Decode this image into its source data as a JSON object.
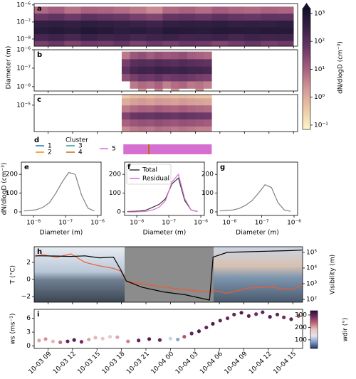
{
  "colorbar": {
    "label": "dN/dlogD (cm⁻³)",
    "zlim": [
      0.07,
      1500
    ],
    "scale": "log",
    "extend": "max",
    "colormap": [
      "#fdf5c9",
      "#ecc9a6",
      "#d39a97",
      "#a8607f",
      "#6c3868",
      "#3a2248",
      "#14122a"
    ],
    "ticks": [
      {
        "value": 1000,
        "label": "10³"
      },
      {
        "value": 100,
        "label": "10²"
      },
      {
        "value": 10,
        "label": "10¹"
      },
      {
        "value": 1,
        "label": "10⁰"
      },
      {
        "value": 0.1,
        "label": "10⁻¹"
      }
    ]
  },
  "chart_data": [
    {
      "type": "heatmap",
      "panel_label": "a",
      "xlim": [
        -1.7,
        30.5
      ],
      "ylim": [
        3.8e-09,
        1.2e-06
      ],
      "yscale": "log",
      "yticks": [
        {
          "value": 1e-06,
          "label": "10⁻⁶"
        },
        {
          "value": 1e-07,
          "label": "10⁻⁷"
        },
        {
          "value": 1e-08,
          "label": "10⁻⁸"
        }
      ],
      "x": [
        -1,
        1,
        3,
        5,
        7,
        9,
        11,
        13,
        15,
        17,
        19,
        21,
        23,
        25,
        27,
        29
      ],
      "y": [
        5e-09,
        1.26e-08,
        3.16e-08,
        7.9e-08,
        2e-07,
        5e-07
      ],
      "z": [
        [
          40,
          60,
          30,
          50,
          45,
          70,
          35,
          55,
          40,
          60,
          50,
          30,
          45,
          65,
          40,
          50
        ],
        [
          200,
          250,
          180,
          300,
          220,
          260,
          190,
          240,
          280,
          210,
          230,
          260,
          200,
          250,
          220,
          240
        ],
        [
          600,
          700,
          550,
          800,
          650,
          500,
          600,
          450,
          700,
          650,
          600,
          750,
          680,
          620,
          700,
          640
        ],
        [
          400,
          450,
          380,
          500,
          420,
          350,
          300,
          250,
          400,
          450,
          420,
          480,
          400,
          430,
          390,
          460
        ],
        [
          60,
          80,
          50,
          90,
          70,
          60,
          40,
          30,
          70,
          80,
          60,
          90,
          70,
          60,
          80,
          75
        ],
        [
          8,
          12,
          6,
          10,
          9,
          7,
          5,
          3,
          8,
          10,
          7,
          12,
          9,
          8,
          10,
          9
        ]
      ]
    },
    {
      "type": "heatmap",
      "panel_label": "b",
      "ylabel": "Diameter (m)",
      "xlim": [
        -1.7,
        30.5
      ],
      "ylim": [
        5.8e-09,
        1e-06
      ],
      "yscale": "log",
      "yticks": [
        {
          "value": 1e-06,
          "label": "10⁻⁶"
        },
        {
          "value": 1e-07,
          "label": "10⁻⁷"
        },
        {
          "value": 1e-08,
          "label": "10⁻⁸"
        }
      ],
      "x": [
        9.5,
        10.5,
        11.5,
        12.5,
        13.5,
        14.5,
        15.5,
        16.5,
        17.5,
        18.5,
        19.5
      ],
      "y": [
        5e-09,
        1.26e-08,
        3.16e-08,
        7.9e-08,
        2e-07,
        5e-07
      ],
      "z": [
        [
          null,
          null,
          2,
          null,
          3,
          null,
          2,
          null,
          null,
          3,
          null
        ],
        [
          null,
          5,
          8,
          6,
          10,
          4,
          7,
          9,
          5,
          6,
          4
        ],
        [
          20,
          40,
          60,
          50,
          70,
          45,
          55,
          65,
          50,
          40,
          35
        ],
        [
          80,
          200,
          250,
          220,
          300,
          260,
          240,
          280,
          230,
          210,
          180
        ],
        [
          40,
          100,
          120,
          110,
          140,
          120,
          100,
          130,
          110,
          90,
          80
        ],
        [
          5,
          15,
          20,
          12,
          18,
          14,
          16,
          20,
          12,
          10,
          8
        ]
      ]
    },
    {
      "type": "heatmap",
      "panel_label": "c",
      "xlim": [
        -1.7,
        30.5
      ],
      "ylim": [
        1.78e-06,
        2e-05
      ],
      "yscale": "log",
      "yticks": [
        {
          "value": 1e-05,
          "label": "10⁻⁵"
        }
      ],
      "x": [
        9.5,
        10.5,
        11.5,
        12.5,
        13.5,
        14.5,
        15.5,
        16.5,
        17.5,
        18.5,
        19.5
      ],
      "y": [
        2e-06,
        3.16e-06,
        5e-06,
        7.9e-06,
        1.26e-05,
        2e-05
      ],
      "z": [
        [
          3,
          5,
          6,
          5,
          7,
          6,
          5,
          6,
          5,
          4,
          4
        ],
        [
          10,
          15,
          18,
          16,
          20,
          17,
          15,
          18,
          16,
          14,
          12
        ],
        [
          30,
          60,
          70,
          65,
          80,
          70,
          60,
          75,
          65,
          55,
          50
        ],
        [
          5,
          8,
          10,
          9,
          12,
          10,
          9,
          11,
          9,
          8,
          7
        ],
        [
          1,
          1.5,
          2,
          1.5,
          2,
          1.8,
          1.5,
          2,
          1.6,
          1.4,
          1.2
        ],
        [
          0.3,
          0.5,
          0.6,
          0.5,
          0.7,
          0.6,
          0.5,
          0.6,
          0.5,
          0.4,
          0.4
        ]
      ]
    },
    {
      "type": "timeline",
      "panel_label": "d",
      "legend_title": "Cluster",
      "xlim": [
        -1.7,
        30.5
      ],
      "series": [
        {
          "name": "1",
          "color": "#1f77b4"
        },
        {
          "name": "2",
          "color": "#ff7f0e"
        },
        {
          "name": "3",
          "color": "#2a9d8f"
        },
        {
          "name": "4",
          "color": "#c8651b"
        },
        {
          "name": "5",
          "color": "#d56fd0"
        }
      ],
      "segments": [
        {
          "start": 9.2,
          "end": 12.2,
          "cluster": 5
        },
        {
          "start": 12.2,
          "end": 12.4,
          "cluster": 4
        },
        {
          "start": 12.4,
          "end": 20,
          "cluster": 5
        }
      ]
    },
    {
      "type": "line",
      "panel_label": "e",
      "ylabel": "dN/dlogD (cm⁻³)",
      "xlabel": "Diameter (m)",
      "xscale": "log",
      "xlim": [
        4.17e-09,
        1.29e-06
      ],
      "ylim": [
        -19,
        265
      ],
      "xticks": [
        {
          "value": 1e-08,
          "label": "10⁻⁸"
        },
        {
          "value": 1e-07,
          "label": "10⁻⁷"
        },
        {
          "value": 1e-06,
          "label": "10⁻⁶"
        }
      ],
      "yticks": [
        0,
        100,
        200
      ],
      "x": [
        5e-09,
        7.9e-09,
        1.26e-08,
        2e-08,
        3.16e-08,
        5e-08,
        7.9e-08,
        1.26e-07,
        2e-07,
        3.16e-07,
        5e-07,
        7.9e-07
      ],
      "series": [
        {
          "color": "#808080",
          "values": [
            5,
            8,
            12,
            25,
            50,
            100,
            160,
            210,
            200,
            90,
            20,
            5
          ]
        }
      ]
    },
    {
      "type": "line",
      "panel_label": "f",
      "xlabel": "Diameter (m)",
      "xscale": "log",
      "legend": "upper left",
      "xlim": [
        4.17e-09,
        1.29e-06
      ],
      "ylim": [
        -19,
        265
      ],
      "xticks": [
        {
          "value": 1e-08,
          "label": "10⁻⁸"
        },
        {
          "value": 1e-07,
          "label": "10⁻⁷"
        },
        {
          "value": 1e-06,
          "label": "10⁻⁶"
        }
      ],
      "yticks": [
        0,
        100,
        200
      ],
      "x": [
        5e-09,
        7.9e-09,
        1.26e-08,
        2e-08,
        3.16e-08,
        5e-08,
        7.9e-08,
        1.26e-07,
        2e-07,
        3.16e-07,
        5e-07,
        7.9e-07
      ],
      "series": [
        {
          "name": "Total",
          "color": "#333333",
          "values": [
            2,
            3,
            5,
            10,
            25,
            40,
            70,
            150,
            180,
            60,
            10,
            2
          ]
        },
        {
          "name": "Residual",
          "color": "#d56fd0",
          "values": [
            0,
            0,
            1,
            3,
            10,
            25,
            60,
            160,
            200,
            70,
            10,
            2
          ]
        }
      ]
    },
    {
      "type": "line",
      "panel_label": "g",
      "xlabel": "Diameter (m)",
      "xscale": "log",
      "xlim": [
        4.17e-09,
        1.29e-06
      ],
      "ylim": [
        -19,
        265
      ],
      "xticks": [
        {
          "value": 1e-08,
          "label": "10⁻⁸"
        },
        {
          "value": 1e-07,
          "label": "10⁻⁷"
        },
        {
          "value": 1e-06,
          "label": "10⁻⁶"
        }
      ],
      "yticks": [
        0,
        100,
        200
      ],
      "x": [
        5e-09,
        7.9e-09,
        1.26e-08,
        2e-08,
        3.16e-08,
        5e-08,
        7.9e-08,
        1.26e-07,
        2e-07,
        3.16e-07,
        5e-07,
        7.9e-07
      ],
      "series": [
        {
          "color": "#808080",
          "values": [
            5,
            8,
            10,
            18,
            35,
            60,
            100,
            145,
            130,
            50,
            10,
            3
          ]
        }
      ]
    },
    {
      "type": "line",
      "panel_label": "h",
      "ylabel": "T (°C)",
      "y2label": "Visibility (m)",
      "xlim": [
        -1.7,
        31.2
      ],
      "ylim": [
        -2.67,
        3.83
      ],
      "y2lim": [
        66,
        229000
      ],
      "y2scale": "log",
      "yticks": [
        {
          "value": 2,
          "label": "2"
        },
        {
          "value": 0,
          "label": "0"
        },
        {
          "value": -2,
          "label": "−2"
        }
      ],
      "y2ticks": [
        {
          "value": 100000,
          "label": "10⁵"
        },
        {
          "value": 10000,
          "label": "10⁴"
        },
        {
          "value": 1000,
          "label": "10³"
        },
        {
          "value": 100,
          "label": "10²"
        }
      ],
      "x": [
        -1.57,
        -0.7,
        1.05,
        2.79,
        4.53,
        6.28,
        8.02,
        8.89,
        9.59,
        11.51,
        14.13,
        16.74,
        19.79,
        20.23,
        21.98,
        24.59,
        27.2,
        29.82,
        31.13
      ],
      "series": [
        {
          "color": "#f25a2b",
          "values": [
            2.7,
            2.9,
            2.6,
            3.0,
            2.0,
            1.6,
            1.3,
            1.0,
            -0.2,
            -0.5,
            -0.9,
            -1.2,
            -1.5,
            -1.3,
            -1.6,
            -1.0,
            -0.9,
            -1.2,
            -0.7
          ]
        },
        {
          "color": "#000000",
          "axis": "y2",
          "values": [
            60000,
            60000,
            58000,
            55000,
            60000,
            45000,
            50000,
            8000,
            1500,
            600,
            300,
            200,
            90,
            50000,
            100000,
            110000,
            120000,
            130000,
            140000
          ]
        }
      ]
    },
    {
      "type": "scatter",
      "panel_label": "i",
      "ylabel": "ws (ms⁻¹)",
      "clabel": "wdir (°)",
      "xlim": [
        -1.7,
        31.2
      ],
      "ylim": [
        -0.53,
        7.94
      ],
      "clim": [
        31,
        334
      ],
      "colormap": [
        "#24356e",
        "#7d9cc9",
        "#e4e4ee",
        "#e8c4c4",
        "#c46a7a",
        "#7a2e62",
        "#2a0f3a"
      ],
      "yticks": [
        0,
        3,
        6
      ],
      "cticks": [
        300,
        200,
        100
      ],
      "xticks": [
        {
          "value": 0,
          "label": "10-03 09"
        },
        {
          "value": 3,
          "label": "10-03 12"
        },
        {
          "value": 6,
          "label": "10-03 15"
        },
        {
          "value": 9,
          "label": "10-03 18"
        },
        {
          "value": 12,
          "label": "10-03 21"
        },
        {
          "value": 15,
          "label": "10-04 00"
        },
        {
          "value": 18,
          "label": "10-04 03"
        },
        {
          "value": 21,
          "label": "10-04 06"
        },
        {
          "value": 24,
          "label": "10-04 09"
        },
        {
          "value": 27,
          "label": "10-04 12"
        },
        {
          "value": 30,
          "label": "10-04 15"
        }
      ],
      "x": [
        -1.1,
        -0.3,
        0.6,
        1.5,
        2.4,
        3.2,
        4.1,
        5.0,
        5.8,
        6.7,
        7.6,
        8.5,
        9.8,
        11.1,
        12.4,
        13.7,
        15.0,
        15.9,
        16.7,
        17.6,
        18.5,
        19.4,
        20.2,
        21.1,
        22.0,
        22.8,
        23.7,
        24.6,
        25.5,
        26.3,
        27.2,
        28.1,
        28.9,
        29.8,
        30.7
      ],
      "values": [
        1.2,
        1.5,
        1.0,
        0.8,
        1.0,
        1.3,
        0.9,
        1.4,
        1.8,
        1.6,
        2.0,
        1.9,
        1.0,
        1.2,
        1.5,
        1.3,
        1.6,
        1.4,
        2.0,
        2.7,
        3.2,
        4.0,
        4.8,
        5.5,
        6.0,
        6.8,
        7.2,
        6.5,
        6.9,
        7.3,
        6.3,
        6.8,
        6.2,
        5.8,
        6.5
      ],
      "c": [
        200,
        210,
        190,
        230,
        300,
        310,
        290,
        200,
        190,
        180,
        170,
        200,
        220,
        300,
        310,
        300,
        120,
        90,
        250,
        300,
        310,
        300,
        310,
        300,
        290,
        300,
        310,
        300,
        290,
        300,
        310,
        300,
        290,
        300,
        250
      ]
    }
  ]
}
